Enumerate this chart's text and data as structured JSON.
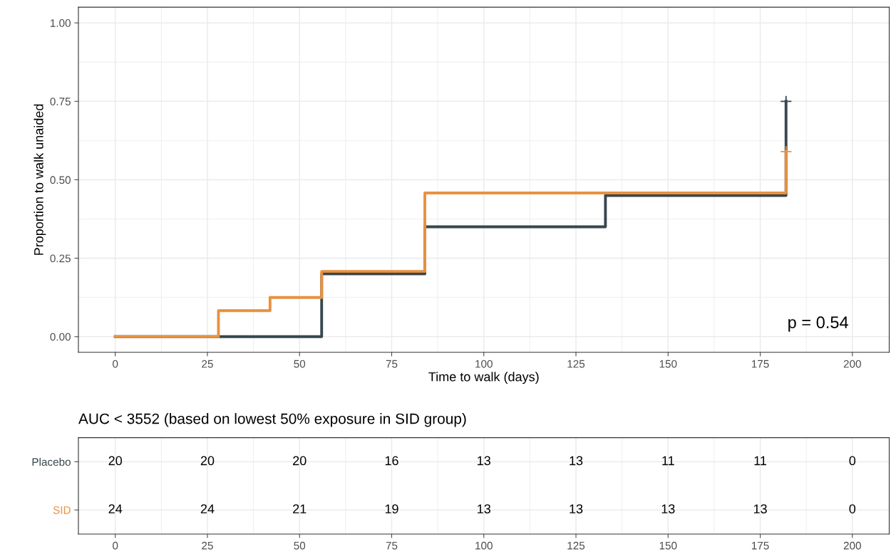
{
  "chart_data": [
    {
      "type": "step",
      "xlabel": "Time to walk (days)",
      "ylabel": "Proportion to walk unaided",
      "xlim": [
        -10,
        210
      ],
      "xticks": [
        0,
        25,
        50,
        75,
        100,
        125,
        150,
        175,
        200
      ],
      "ylim": [
        -0.05,
        1.05
      ],
      "yticks": [
        {
          "value": 0,
          "label": "0.00"
        },
        {
          "value": 0.25,
          "label": "0.25"
        },
        {
          "value": 0.5,
          "label": "0.50"
        },
        {
          "value": 0.75,
          "label": "0.75"
        },
        {
          "value": 1,
          "label": "1.00"
        }
      ],
      "grid": true,
      "line_style": "solid",
      "series": [
        {
          "color": "#37474f",
          "x": [
            0,
            56,
            84,
            133,
            182,
            182
          ],
          "values": [
            0,
            0.2,
            0.35,
            0.45,
            0.45,
            0.75
          ]
        },
        {
          "color": "#e8913f",
          "x": [
            0,
            28,
            42,
            56,
            84,
            182,
            182
          ],
          "values": [
            0,
            0.083,
            0.125,
            0.208,
            0.458,
            0.458,
            0.59
          ]
        },
        {
          "type": "scatter",
          "marker": "cross",
          "color": "#37474f",
          "x": [
            182
          ],
          "values": [
            0.75
          ]
        },
        {
          "type": "scatter",
          "marker": "cross",
          "color": "#e8913f",
          "x": [
            182
          ],
          "values": [
            0.59
          ]
        }
      ],
      "annotations": [
        "p = 0.54"
      ]
    },
    {
      "type": "heatmap",
      "title": "AUC < 3552 (based on lowest 50% exposure in SID group)",
      "categories": [
        "0",
        "25",
        "50",
        "75",
        "100",
        "125",
        "150",
        "175",
        "200"
      ],
      "y_categories": [
        "Placebo",
        "SID"
      ],
      "cells": [
        [
          20,
          20,
          20,
          16,
          13,
          13,
          11,
          11,
          0
        ],
        [
          24,
          24,
          21,
          19,
          13,
          13,
          13,
          13,
          0
        ]
      ],
      "data_labels": true,
      "grid": true
    }
  ]
}
